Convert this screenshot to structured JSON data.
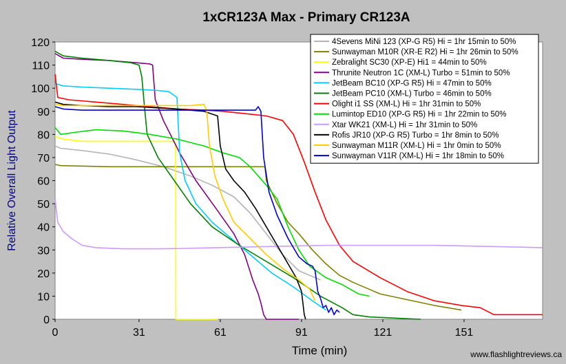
{
  "chart_data": {
    "type": "line",
    "title": "1xCR123A Max - Primary CR123A",
    "xlabel": "Time (min)",
    "ylabel": "Relative Overall Light Output",
    "watermark": "www.flashlightreviews.ca",
    "xlim": [
      0,
      180
    ],
    "ylim": [
      0,
      120
    ],
    "xticks": [
      0,
      31,
      61,
      91,
      121,
      151
    ],
    "yticks": [
      0,
      10,
      20,
      30,
      40,
      50,
      60,
      70,
      80,
      90,
      100,
      110,
      120
    ],
    "grid": "none",
    "legend_position": "top-right",
    "series": [
      {
        "name": "4Sevens MiNi 123 (XP-G R5) Hi = 1hr 15min to 50%",
        "color": "#b4b4b4",
        "points": [
          [
            0,
            75
          ],
          [
            2,
            74
          ],
          [
            10,
            73
          ],
          [
            20,
            71.5
          ],
          [
            30,
            69
          ],
          [
            40,
            66
          ],
          [
            50,
            62
          ],
          [
            58,
            58
          ],
          [
            66,
            53
          ],
          [
            72,
            46
          ],
          [
            78,
            37
          ],
          [
            84,
            28
          ],
          [
            90,
            21
          ],
          [
            95,
            18.5
          ],
          [
            98,
            17
          ]
        ]
      },
      {
        "name": "Sunwayman M10R (XR-E R2) Hi = 1hr 26min to 50%",
        "color": "#808000",
        "points": [
          [
            0,
            67
          ],
          [
            2,
            66.5
          ],
          [
            20,
            66
          ],
          [
            40,
            66
          ],
          [
            60,
            66
          ],
          [
            76,
            66
          ],
          [
            77.5,
            66
          ],
          [
            78,
            60
          ],
          [
            82,
            50
          ],
          [
            86,
            42
          ],
          [
            90,
            37
          ],
          [
            95,
            30
          ],
          [
            100,
            24
          ],
          [
            105,
            19
          ],
          [
            110,
            16
          ],
          [
            115,
            13.5
          ],
          [
            120,
            11
          ],
          [
            130,
            8.5
          ],
          [
            140,
            6
          ],
          [
            150,
            4
          ]
        ]
      },
      {
        "name": "Zebralight SC30 (XP-E) Hi1 = 44min to 50%",
        "color": "#ffff00",
        "points": [
          [
            0,
            79
          ],
          [
            3,
            78
          ],
          [
            10,
            77
          ],
          [
            20,
            77
          ],
          [
            30,
            77
          ],
          [
            40,
            77
          ],
          [
            44,
            77
          ],
          [
            44.5,
            76
          ],
          [
            44.6,
            0
          ],
          [
            60,
            0
          ]
        ]
      },
      {
        "name": "Thrunite Neutron 1C (XM-L) Turbo = 51min to 50%",
        "color": "#800080",
        "points": [
          [
            0,
            115
          ],
          [
            3,
            113
          ],
          [
            10,
            112.5
          ],
          [
            20,
            112
          ],
          [
            30,
            111
          ],
          [
            35,
            110.5
          ],
          [
            36,
            110
          ],
          [
            37,
            95
          ],
          [
            40,
            86
          ],
          [
            46,
            72
          ],
          [
            52,
            60
          ],
          [
            60,
            47
          ],
          [
            66,
            37
          ],
          [
            70,
            28
          ],
          [
            73,
            17
          ],
          [
            75,
            11
          ],
          [
            76,
            7
          ],
          [
            77,
            2
          ],
          [
            78,
            0
          ],
          [
            90,
            0
          ]
        ]
      },
      {
        "name": "JetBeam BC10 (XP-G R5) Hi = 47min to 50%",
        "color": "#00ccff",
        "points": [
          [
            0,
            102
          ],
          [
            3,
            101
          ],
          [
            10,
            100.5
          ],
          [
            20,
            100
          ],
          [
            30,
            99.5
          ],
          [
            38,
            99
          ],
          [
            42,
            98.5
          ],
          [
            45,
            96
          ],
          [
            46,
            72
          ],
          [
            48,
            60
          ],
          [
            52,
            50
          ],
          [
            58,
            42
          ],
          [
            65,
            35
          ],
          [
            72,
            28
          ],
          [
            80,
            20
          ],
          [
            88,
            14
          ],
          [
            95,
            8
          ],
          [
            100,
            4
          ]
        ]
      },
      {
        "name": "JetBeam PC10 (XM-L) Turbo = 46min to 50%",
        "color": "#008000",
        "points": [
          [
            0,
            116
          ],
          [
            3,
            114
          ],
          [
            10,
            113
          ],
          [
            20,
            112
          ],
          [
            28,
            111
          ],
          [
            31,
            110
          ],
          [
            32,
            105
          ],
          [
            33,
            92
          ],
          [
            34,
            80
          ],
          [
            38,
            70
          ],
          [
            44,
            60
          ],
          [
            50,
            50
          ],
          [
            58,
            40
          ],
          [
            68,
            32
          ],
          [
            78,
            25
          ],
          [
            88,
            18
          ],
          [
            98,
            10
          ],
          [
            106,
            5
          ],
          [
            110,
            2
          ],
          [
            116,
            1
          ],
          [
            135,
            0
          ]
        ]
      },
      {
        "name": "Olight i1 SS (XM-L) Hi = 1hr 31min to 50%",
        "color": "#ff0000",
        "points": [
          [
            0,
            106
          ],
          [
            1,
            96
          ],
          [
            5,
            95
          ],
          [
            15,
            94
          ],
          [
            25,
            93
          ],
          [
            35,
            92
          ],
          [
            45,
            91
          ],
          [
            55,
            90.5
          ],
          [
            62,
            90
          ],
          [
            70,
            89
          ],
          [
            78,
            88
          ],
          [
            84,
            86
          ],
          [
            88,
            80
          ],
          [
            92,
            68
          ],
          [
            96,
            55
          ],
          [
            100,
            43
          ],
          [
            105,
            32
          ],
          [
            110,
            25
          ],
          [
            120,
            18
          ],
          [
            130,
            12
          ],
          [
            140,
            8
          ],
          [
            150,
            6
          ],
          [
            157,
            5
          ],
          [
            162,
            2
          ],
          [
            170,
            2
          ],
          [
            180,
            2
          ]
        ]
      },
      {
        "name": "Lumintop ED10 (XP-G R5) Hi = 1hr 22min to 50%",
        "color": "#00dd00",
        "points": [
          [
            0,
            83
          ],
          [
            2,
            80
          ],
          [
            8,
            81
          ],
          [
            15,
            82
          ],
          [
            25,
            81.5
          ],
          [
            35,
            80
          ],
          [
            45,
            78
          ],
          [
            55,
            75
          ],
          [
            62,
            72
          ],
          [
            68,
            70
          ],
          [
            72,
            66
          ],
          [
            75,
            62
          ],
          [
            78,
            58
          ],
          [
            82,
            52
          ],
          [
            86,
            40
          ],
          [
            90,
            30
          ],
          [
            94,
            23
          ],
          [
            100,
            18
          ],
          [
            106,
            15
          ],
          [
            112,
            11
          ],
          [
            116,
            10
          ]
        ]
      },
      {
        "name": "Xtar WK21 (XM-L) Hi = 1hr 31min to 50%",
        "color": "#cc99ff",
        "points": [
          [
            0,
            52
          ],
          [
            1,
            42
          ],
          [
            3,
            38
          ],
          [
            6,
            35
          ],
          [
            10,
            32
          ],
          [
            15,
            31
          ],
          [
            25,
            30.5
          ],
          [
            40,
            30.5
          ],
          [
            60,
            31
          ],
          [
            80,
            31.5
          ],
          [
            100,
            32
          ],
          [
            120,
            32
          ],
          [
            140,
            32
          ],
          [
            160,
            31.5
          ],
          [
            180,
            31
          ]
        ]
      },
      {
        "name": "Rofis JR10 (XP-G R5) Turbo = 1hr 8min to 50%",
        "color": "#000000",
        "points": [
          [
            0,
            94
          ],
          [
            3,
            93
          ],
          [
            10,
            92.5
          ],
          [
            20,
            92
          ],
          [
            30,
            92
          ],
          [
            45,
            91
          ],
          [
            55,
            90
          ],
          [
            60,
            88
          ],
          [
            61,
            75
          ],
          [
            63,
            65
          ],
          [
            66,
            60
          ],
          [
            70,
            55
          ],
          [
            74,
            48
          ],
          [
            78,
            40
          ],
          [
            82,
            32
          ],
          [
            86,
            24
          ],
          [
            89,
            18
          ],
          [
            91,
            12
          ],
          [
            92,
            2
          ],
          [
            92.5,
            0
          ]
        ]
      },
      {
        "name": "Sunwayman M11R (XM-L) Hi = 1hr 0min to 50%",
        "color": "#ffcc00",
        "points": [
          [
            0,
            93
          ],
          [
            3,
            92.5
          ],
          [
            10,
            92.5
          ],
          [
            20,
            92.5
          ],
          [
            30,
            92.5
          ],
          [
            40,
            92.5
          ],
          [
            50,
            92.5
          ],
          [
            55,
            93
          ],
          [
            56,
            90
          ],
          [
            57,
            75
          ],
          [
            59,
            62
          ],
          [
            62,
            52
          ],
          [
            66,
            42
          ],
          [
            72,
            35
          ],
          [
            78,
            28
          ],
          [
            84,
            22
          ],
          [
            90,
            17
          ],
          [
            94,
            13
          ],
          [
            96,
            8
          ]
        ]
      },
      {
        "name": "Sunwayman V11R (XM-L) Hi = 1hr 18min to 50%",
        "color": "#0000cc",
        "points": [
          [
            0,
            92
          ],
          [
            3,
            91
          ],
          [
            10,
            90.5
          ],
          [
            20,
            90.5
          ],
          [
            40,
            90.5
          ],
          [
            60,
            90.5
          ],
          [
            74,
            90.5
          ],
          [
            75,
            92
          ],
          [
            76,
            90
          ],
          [
            77,
            70
          ],
          [
            79,
            55
          ],
          [
            82,
            45
          ],
          [
            86,
            35
          ],
          [
            90,
            27
          ],
          [
            93,
            24
          ],
          [
            95,
            23
          ],
          [
            96,
            21
          ],
          [
            97,
            12
          ],
          [
            98,
            9
          ],
          [
            99,
            5
          ],
          [
            100,
            6
          ],
          [
            101,
            3
          ],
          [
            102,
            5
          ],
          [
            103,
            2
          ],
          [
            104,
            4
          ],
          [
            105,
            3
          ]
        ]
      }
    ]
  }
}
